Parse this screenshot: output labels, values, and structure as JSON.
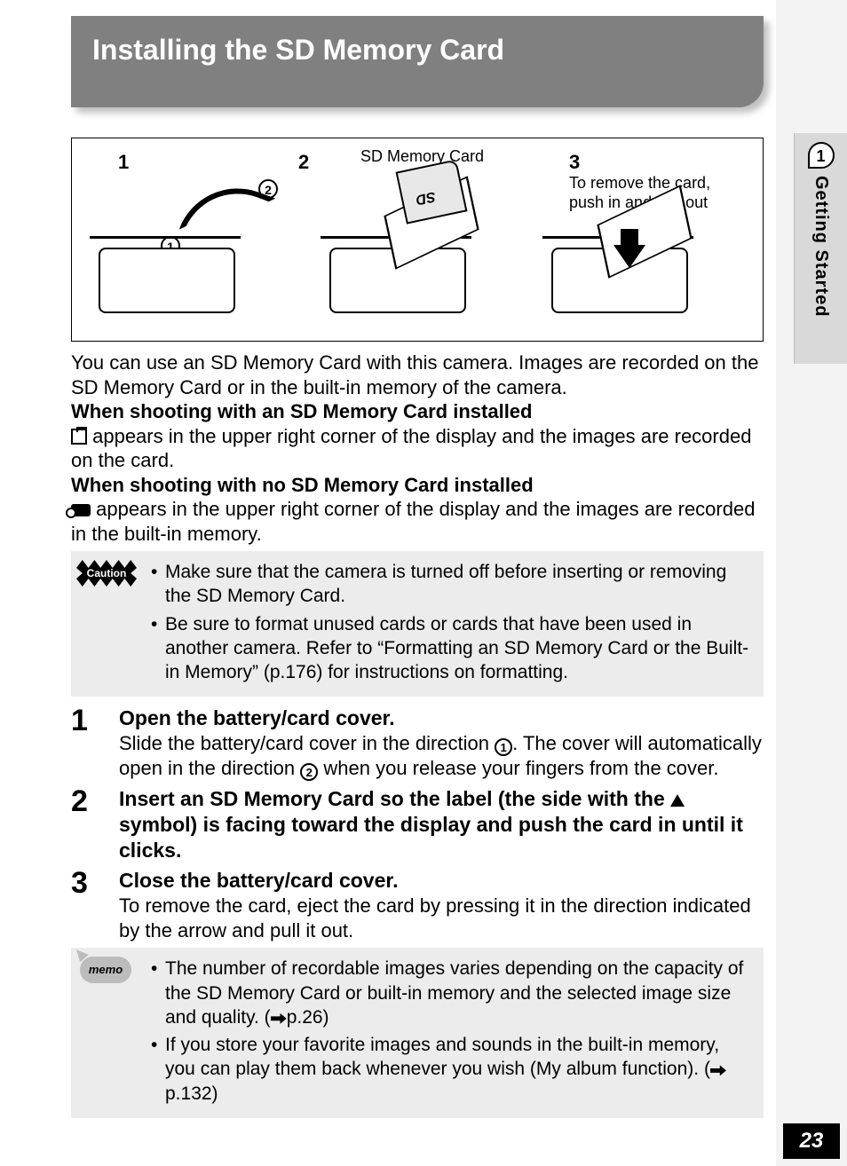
{
  "colors": {
    "banner_bg": "#808080",
    "banner_text": "#ffffff",
    "note_bg": "#ececec",
    "sidebar_bg": "#d9d9d9",
    "right_col_bg": "#f3f3f3",
    "page_num_bg": "#000000",
    "page_num_text": "#ffffff",
    "text": "#000000"
  },
  "title": "Installing the SD Memory Card",
  "diagram": {
    "panel_labels": [
      "1",
      "2",
      "3"
    ],
    "sd_label": "SD Memory Card",
    "sd_text": "SD",
    "remove_text": "To remove the card, push in and pull out",
    "circle1": "1",
    "circle2": "2"
  },
  "intro": {
    "p1": "You can use an SD Memory Card with this camera. Images are recorded on the SD Memory Card or in the built-in memory of the camera.",
    "h1": "When shooting with an SD Memory Card installed",
    "p2a": " appears in the upper right corner of the display and the images are recorded on the card.",
    "h2": "When shooting with no SD Memory Card installed",
    "p3a": " appears in the upper right corner of the display and the images are recorded in the built-in memory."
  },
  "caution": {
    "label": "Caution",
    "items": [
      "Make sure that the camera is turned off before inserting or removing the SD Memory Card.",
      "Be sure to format unused cards or cards that have been used in another camera. Refer to “Formatting an SD Memory Card or the Built-in Memory” (p.176) for instructions on formatting."
    ]
  },
  "steps": [
    {
      "num": "1",
      "title": "Open the battery/card cover.",
      "body_a": "Slide the battery/card cover in the direction ",
      "body_b": ". The cover will automatically open in the direction ",
      "body_c": " when you release your fingers from the cover.",
      "c1": "1",
      "c2": "2"
    },
    {
      "num": "2",
      "title_a": "Insert an SD Memory Card so the label (the side with the ",
      "title_b": " symbol) is facing toward the display and push the card in until it clicks."
    },
    {
      "num": "3",
      "title": "Close the battery/card cover.",
      "body": "To remove the card, eject the card by pressing it in the direction indicated by the arrow and pull it out."
    }
  ],
  "memo": {
    "label": "memo",
    "items": [
      {
        "a": "The number of recordable images varies depending on the capacity of the SD Memory Card or built-in memory and the selected image size and quality. (",
        "b": "p.26)"
      },
      {
        "a": "If you store your favorite images and sounds in the built-in memory, you can play them back whenever you wish (My album function). (",
        "b": "p.132)"
      }
    ]
  },
  "sidebar": {
    "chapter": "1",
    "label": "Getting Started"
  },
  "page_number": "23"
}
